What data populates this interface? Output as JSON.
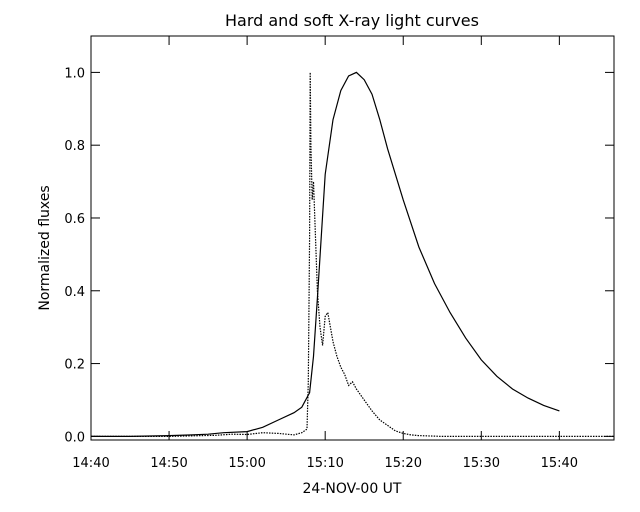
{
  "chart_data": {
    "type": "line",
    "title": "Hard and soft X-ray light curves",
    "xlabel": "24-NOV-00  UT",
    "ylabel": "Normalized fluxes",
    "xlim": [
      "14:40",
      "15:47"
    ],
    "ylim": [
      -0.01,
      1.1
    ],
    "x_ticks": [
      "14:40",
      "14:50",
      "15:00",
      "15:10",
      "15:20",
      "15:30",
      "15:40"
    ],
    "y_ticks": [
      "0.0",
      "0.2",
      "0.4",
      "0.6",
      "0.8",
      "1.0"
    ],
    "y_tick_values": [
      0.0,
      0.2,
      0.4,
      0.6,
      0.8,
      1.0
    ],
    "grid": false,
    "series": [
      {
        "style": "solid",
        "x": [
          "14:40",
          "14:45",
          "14:50",
          "14:53",
          "14:55",
          "14:57",
          "15:00",
          "15:02",
          "15:04",
          "15:06",
          "15:07",
          "15:08",
          "15:08:30",
          "15:09",
          "15:09:30",
          "15:10",
          "15:11",
          "15:12",
          "15:13",
          "15:14",
          "15:15",
          "15:16",
          "15:17",
          "15:18",
          "15:20",
          "15:22",
          "15:24",
          "15:26",
          "15:28",
          "15:30",
          "15:32",
          "15:34",
          "15:36",
          "15:38",
          "15:40"
        ],
        "y": [
          0.0,
          0.0,
          0.002,
          0.004,
          0.006,
          0.01,
          0.013,
          0.025,
          0.045,
          0.065,
          0.08,
          0.12,
          0.22,
          0.38,
          0.55,
          0.72,
          0.87,
          0.95,
          0.99,
          1.0,
          0.98,
          0.94,
          0.87,
          0.79,
          0.65,
          0.52,
          0.42,
          0.34,
          0.27,
          0.21,
          0.165,
          0.13,
          0.105,
          0.085,
          0.07
        ]
      },
      {
        "style": "dotted",
        "x": [
          "14:40",
          "14:50",
          "14:56",
          "14:58",
          "15:00",
          "15:02",
          "15:04",
          "15:06",
          "15:07",
          "15:07:40",
          "15:07:50",
          "15:08",
          "15:08:05",
          "15:08:10",
          "15:08:20",
          "15:08:30",
          "15:08:40",
          "15:08:50",
          "15:09",
          "15:09:20",
          "15:09:40",
          "15:10",
          "15:10:20",
          "15:10:40",
          "15:11",
          "15:11:30",
          "15:12",
          "15:12:30",
          "15:13",
          "15:13:30",
          "15:14",
          "15:15",
          "15:16",
          "15:17",
          "15:18",
          "15:19",
          "15:20",
          "15:21",
          "15:22",
          "15:25",
          "15:35",
          "15:47"
        ],
        "y": [
          0.0,
          0.0,
          0.003,
          0.006,
          0.005,
          0.01,
          0.008,
          0.004,
          0.01,
          0.02,
          0.15,
          0.55,
          1.0,
          0.8,
          0.65,
          0.7,
          0.6,
          0.5,
          0.4,
          0.3,
          0.25,
          0.33,
          0.34,
          0.3,
          0.26,
          0.22,
          0.19,
          0.17,
          0.14,
          0.15,
          0.13,
          0.1,
          0.07,
          0.045,
          0.03,
          0.015,
          0.008,
          0.004,
          0.002,
          0.0,
          0.0,
          0.0
        ]
      }
    ]
  }
}
